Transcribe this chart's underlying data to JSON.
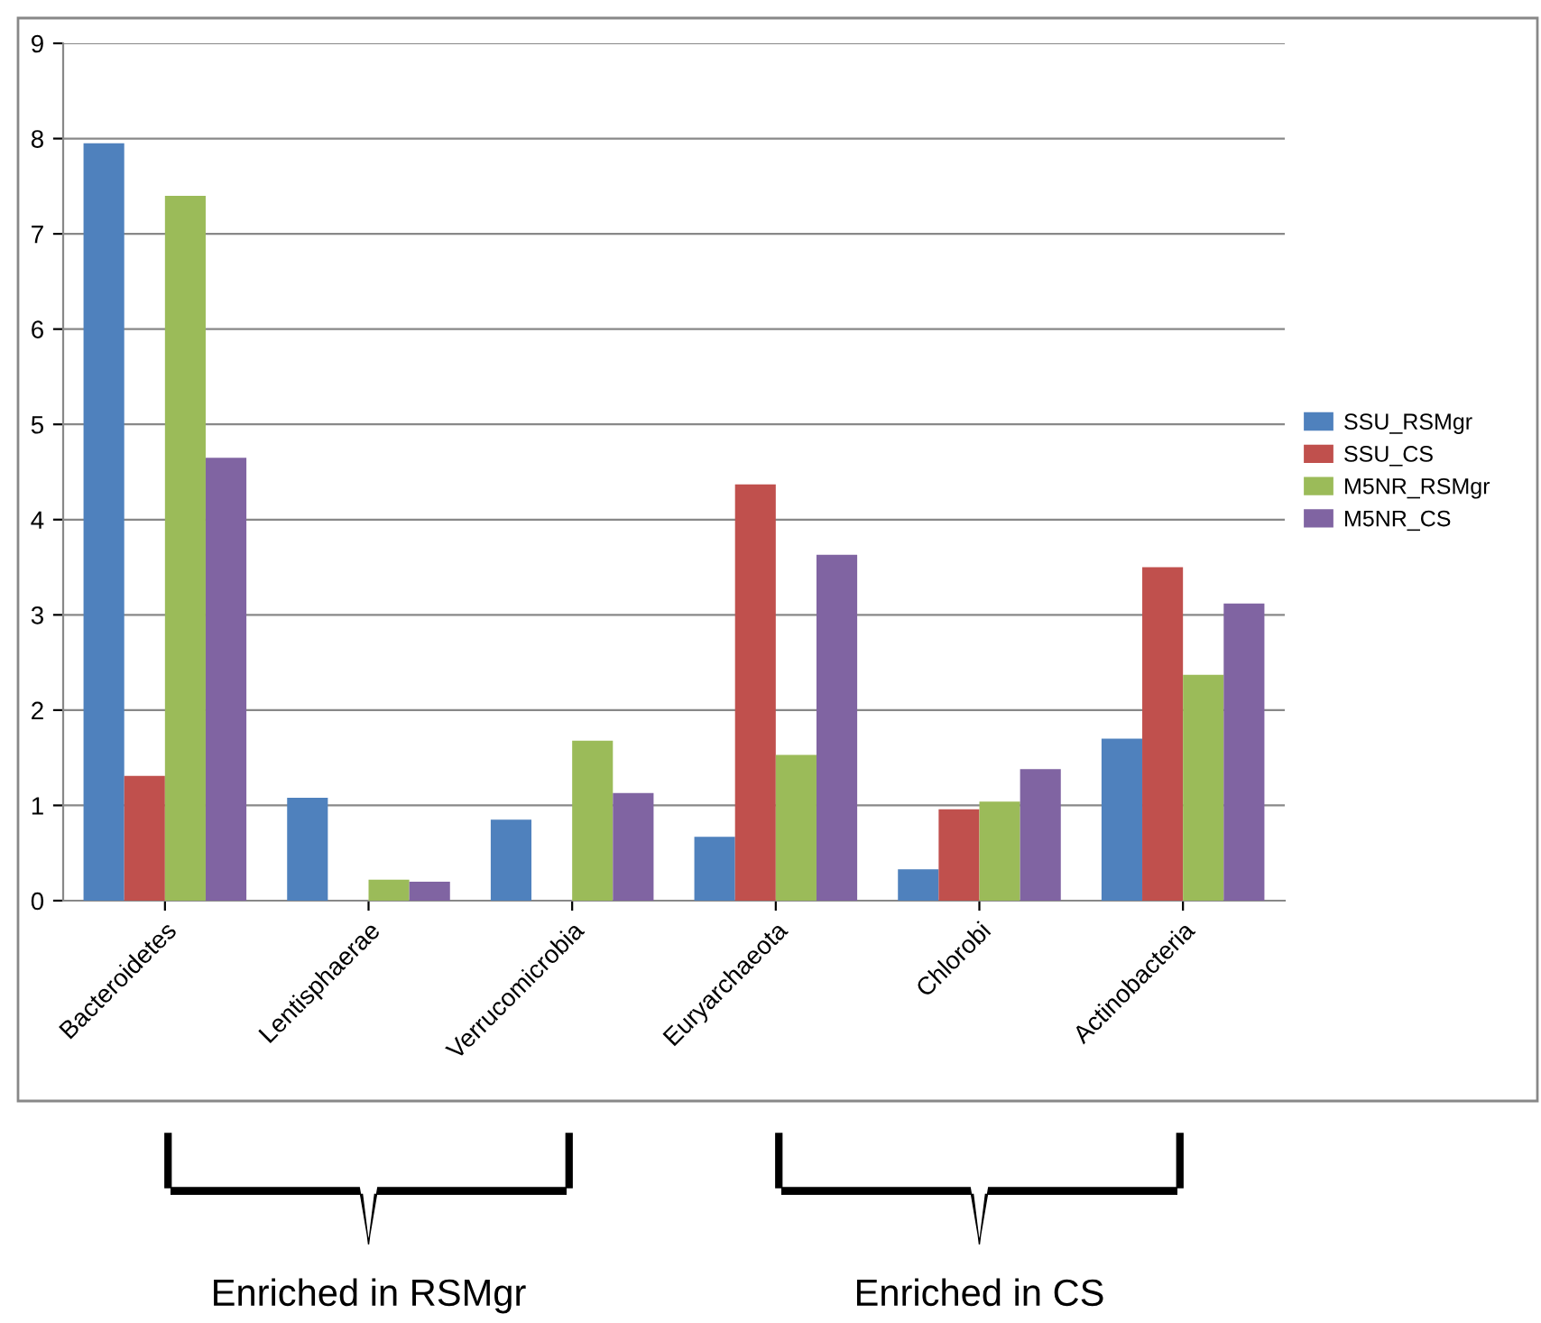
{
  "chart_data": {
    "type": "bar",
    "categories": [
      "Bacteroidetes",
      "Lentisphaerae",
      "Verrucomicrobia",
      "Euryarchaeota",
      "Chlorobi",
      "Actinobacteria"
    ],
    "series": [
      {
        "name": "SSU_RSMgr",
        "color": "#4f81bd",
        "values": [
          7.95,
          1.08,
          0.85,
          0.67,
          0.33,
          1.7
        ]
      },
      {
        "name": "SSU_CS",
        "color": "#c0504d",
        "values": [
          1.31,
          0,
          0,
          4.37,
          0.96,
          3.5
        ]
      },
      {
        "name": "M5NR_RSMgr",
        "color": "#9bbb59",
        "values": [
          7.4,
          0.22,
          1.68,
          1.53,
          1.04,
          2.37
        ]
      },
      {
        "name": "M5NR_CS",
        "color": "#8064a2",
        "values": [
          4.65,
          0.2,
          1.13,
          3.63,
          1.38,
          3.12
        ]
      }
    ],
    "ylim": [
      0,
      9
    ],
    "yticks": [
      0,
      1,
      2,
      3,
      4,
      5,
      6,
      7,
      8,
      9
    ],
    "grid": "y",
    "legend": "right",
    "annotations": [
      "Enriched in RSMgr",
      "Enriched in CS"
    ]
  }
}
